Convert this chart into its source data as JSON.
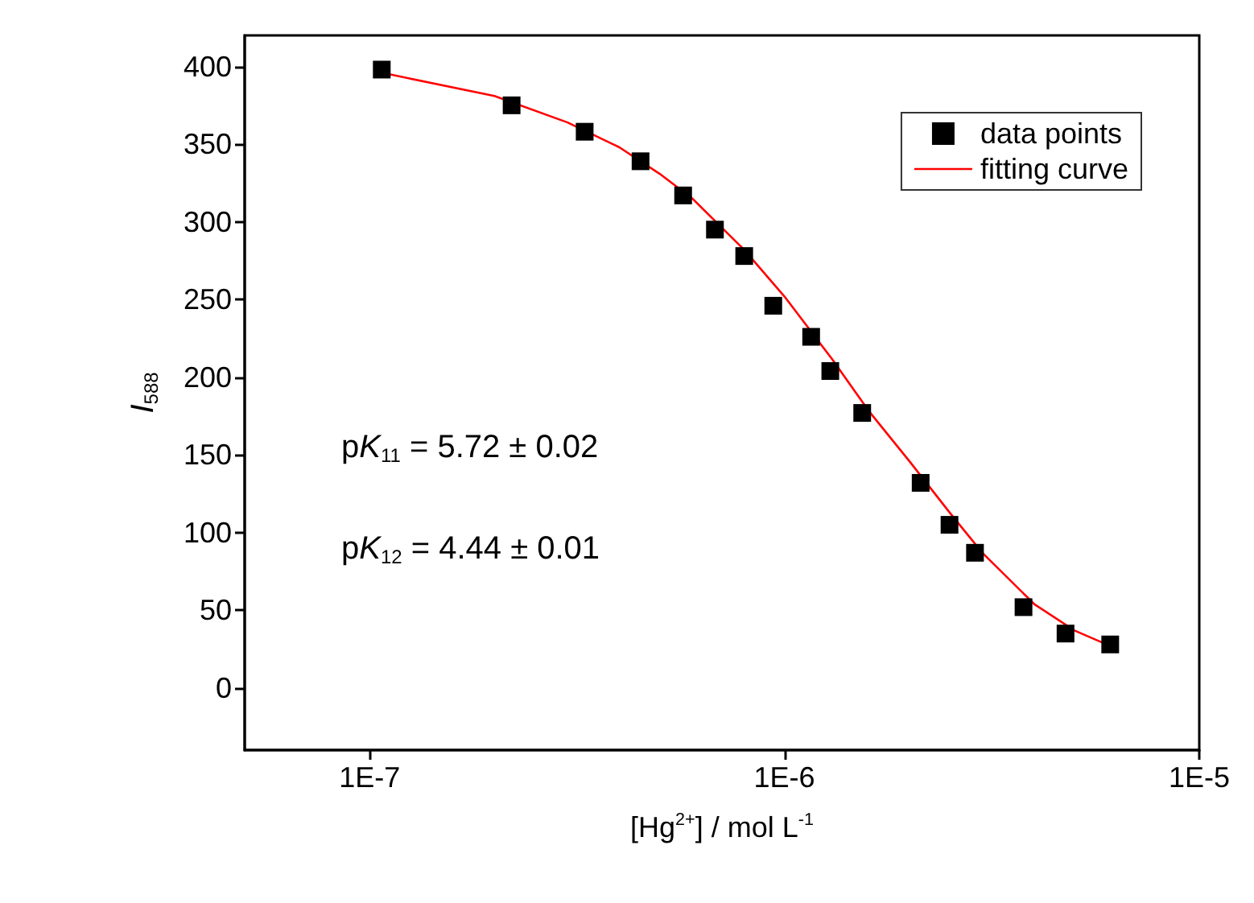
{
  "chart_data": {
    "type": "scatter",
    "xlabel": "[Hg$^{2+}$] / mol L$^{-1}$",
    "ylabel": "I$_{588}$",
    "log": "x",
    "xlim": [
      5e-08,
      1e-05
    ],
    "xticks": [
      {
        "value": 1e-07,
        "label": "1E-7"
      },
      {
        "value": 1e-06,
        "label": "1E-6"
      },
      {
        "value": 1e-05,
        "label": "1E-5"
      }
    ],
    "ylim": [
      -40,
      420
    ],
    "yticks": [
      0,
      50,
      100,
      150,
      200,
      250,
      300,
      350,
      400
    ],
    "legend": "top right",
    "annotations": [
      "pK$_{11}$ = 5.72 ± 0.02",
      "pK$_{12}$ = 4.44 ± 0.01"
    ],
    "series": [
      {
        "name": "data points",
        "marker": "square",
        "color": "#000000",
        "x": [
          1.07e-07,
          2.2e-07,
          3.3e-07,
          4.5e-07,
          5.7e-07,
          6.8e-07,
          8e-07,
          9.4e-07,
          1.16e-06,
          1.29e-06,
          1.54e-06,
          2.13e-06,
          2.5e-06,
          2.88e-06,
          3.77e-06,
          4.76e-06,
          6.1e-06
        ],
        "values": [
          398,
          375,
          358,
          339,
          317,
          295,
          278,
          246,
          226,
          204,
          177,
          132,
          105,
          87,
          52,
          35,
          28
        ]
      },
      {
        "name": "fitting curve",
        "type": "line",
        "marker": "none",
        "line_style": "solid",
        "color": "#ff0000",
        "x": [
          1.07e-07,
          2e-07,
          3e-07,
          4e-07,
          5e-07,
          6e-07,
          8e-07,
          1e-06,
          1.3e-06,
          1.6e-06,
          2e-06,
          2.5e-06,
          3e-06,
          4e-06,
          5e-06,
          6.1e-06
        ],
        "values": [
          396,
          381,
          364,
          348,
          331,
          315,
          282,
          252,
          212,
          178,
          146,
          113,
          87,
          54,
          37,
          27
        ]
      }
    ]
  }
}
